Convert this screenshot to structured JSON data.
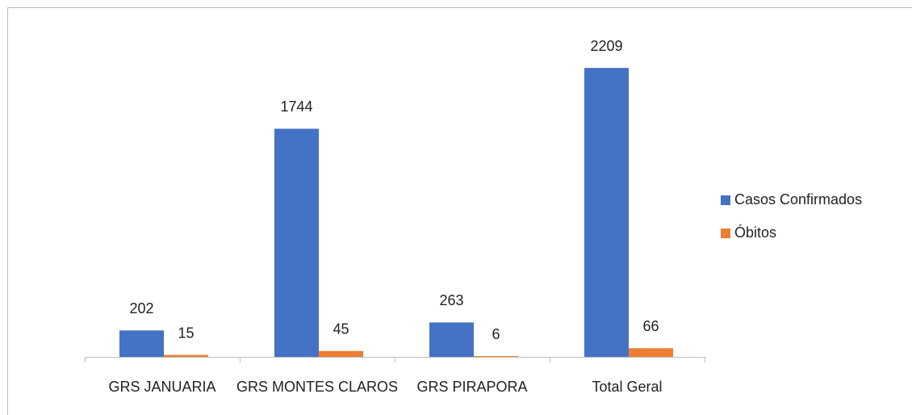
{
  "chart_data": {
    "type": "bar",
    "categories": [
      "GRS JANUARIA",
      "GRS MONTES CLAROS",
      "GRS PIRAPORA",
      "Total Geral"
    ],
    "series": [
      {
        "name": "Casos Confirmados",
        "color": "#4472c4",
        "values": [
          202,
          1744,
          263,
          2209
        ]
      },
      {
        "name": "Óbitos",
        "color": "#ed7d31",
        "values": [
          15,
          45,
          6,
          66
        ]
      }
    ],
    "ylim": [
      0,
      2500
    ],
    "legend": "right"
  }
}
